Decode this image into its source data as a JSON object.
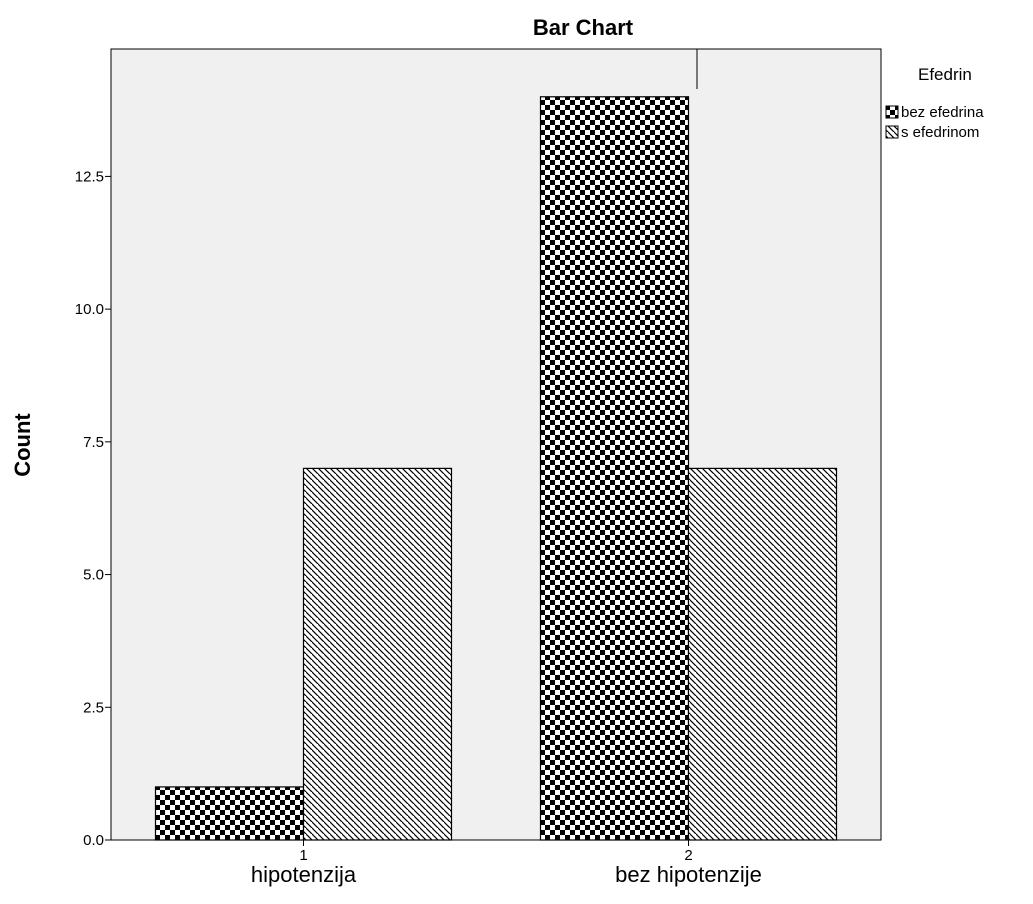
{
  "chart_data": {
    "type": "bar",
    "title": "Bar Chart",
    "xlabel": "",
    "ylabel": "Count",
    "ylim": [
      0,
      14.9
    ],
    "yticks": [
      0.0,
      2.5,
      5.0,
      7.5,
      10.0,
      12.5
    ],
    "ytick_labels": [
      "0.0",
      "2.5",
      "5.0",
      "7.5",
      "10.0",
      "12.5"
    ],
    "categories": [
      "hipotenzija",
      "bez hipotenzije"
    ],
    "category_codes": [
      "1",
      "2"
    ],
    "legend_title": "Efedrin",
    "legend_placement": "top-right outside plot",
    "grid": false,
    "plot_background": "#f0f0f0",
    "series": [
      {
        "name": "bez efedrina",
        "pattern": "checkerboard",
        "values": [
          1,
          14
        ]
      },
      {
        "name": "s efedrinom",
        "pattern": "diagonal-hatch",
        "values": [
          7,
          7
        ]
      }
    ]
  }
}
